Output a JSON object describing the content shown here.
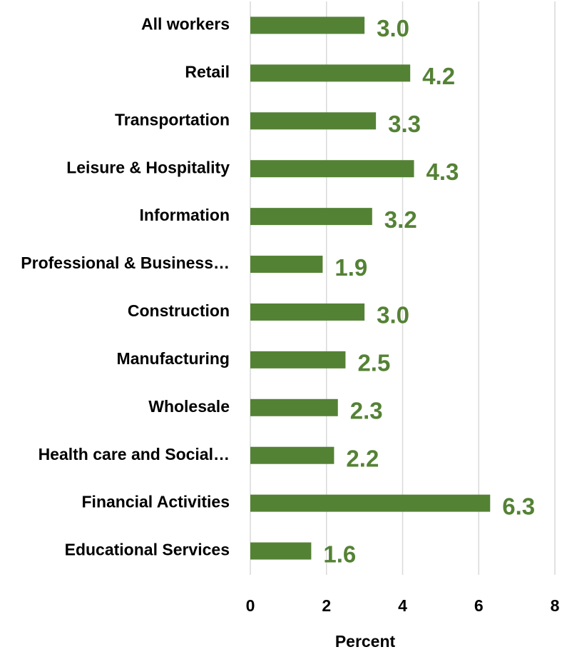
{
  "chart_data": {
    "type": "barh",
    "categories": [
      "All workers",
      "Retail",
      "Transportation",
      "Leisure & Hospitality",
      "Information",
      "Professional & Business…",
      "Construction",
      "Manufacturing",
      "Wholesale",
      "Health care and Social…",
      "Financial Activities",
      "Educational Services"
    ],
    "values": [
      3.0,
      4.2,
      3.3,
      4.3,
      3.2,
      1.9,
      3.0,
      2.5,
      2.3,
      2.2,
      6.3,
      1.6
    ],
    "value_labels": [
      "3.0",
      "4.2",
      "3.3",
      "4.3",
      "3.2",
      "1.9",
      "3.0",
      "2.5",
      "2.3",
      "2.2",
      "6.3",
      "1.6"
    ],
    "color": "#548235",
    "xlabel": "Percent",
    "xlim": [
      0,
      8
    ],
    "xticks": [
      0,
      2,
      4,
      6,
      8
    ],
    "grid": true
  }
}
